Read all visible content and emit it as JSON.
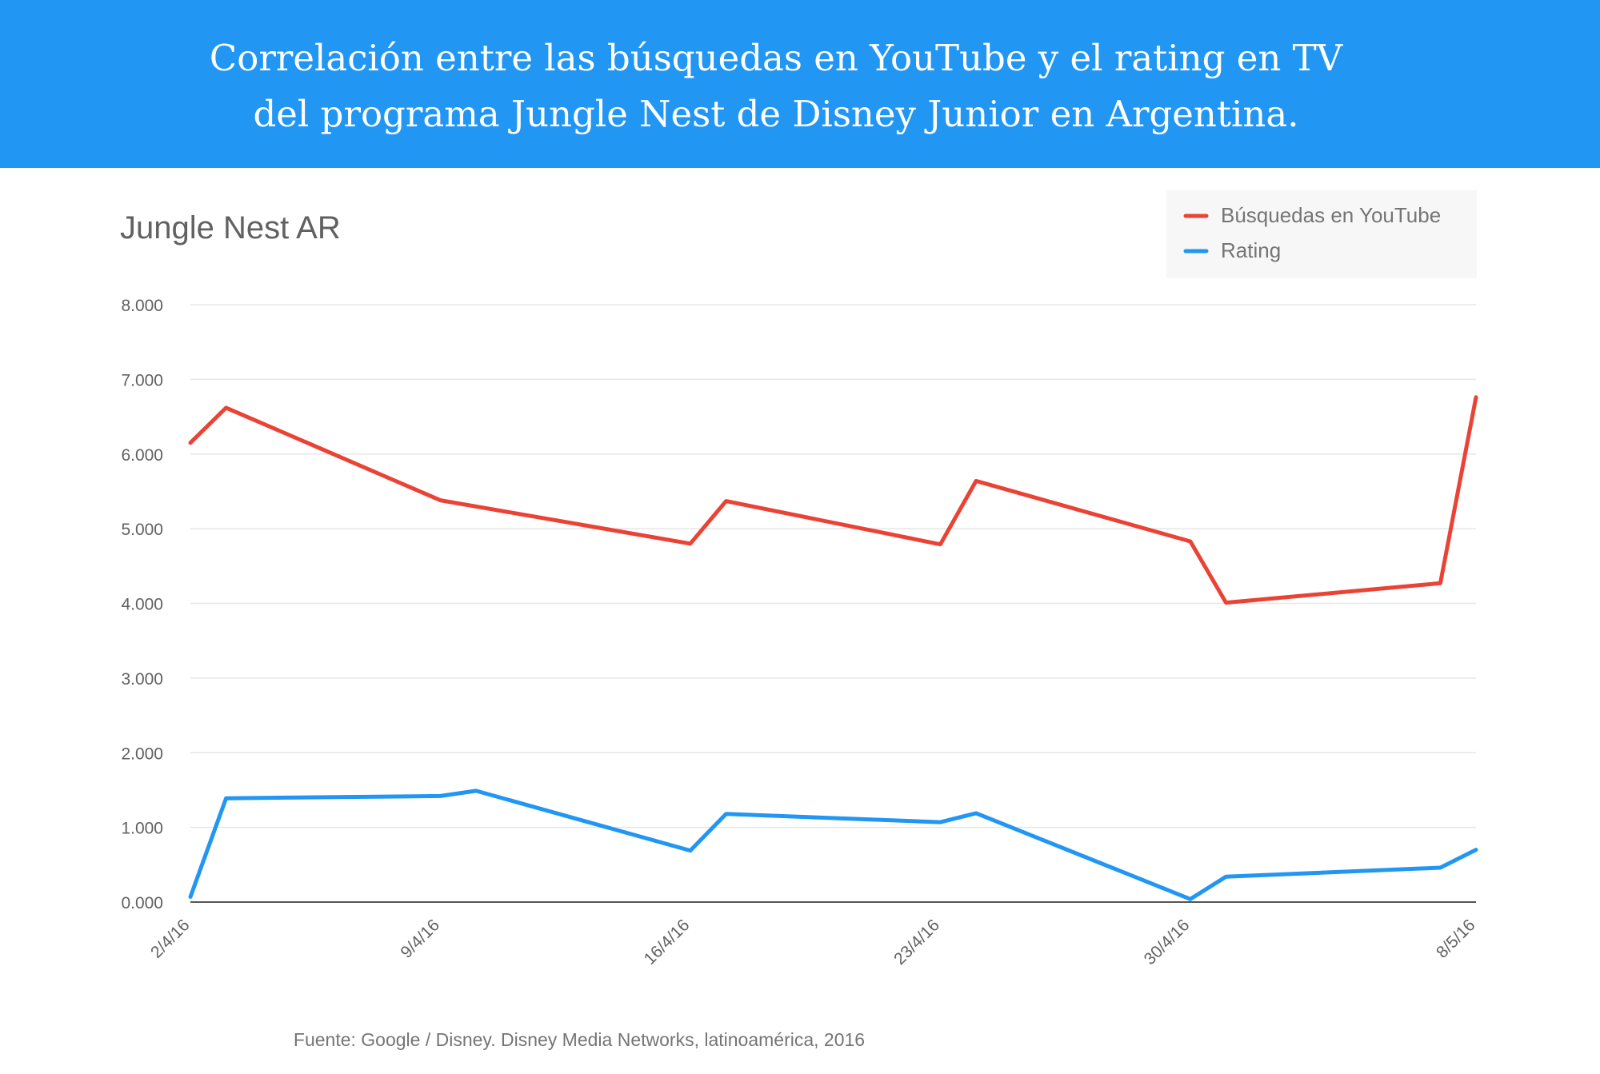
{
  "header": {
    "title_line1": "Correlación entre las búsquedas en YouTube y el rating en TV",
    "title_line2": "del programa Jungle Nest de Disney Junior en Argentina."
  },
  "colors": {
    "banner": "#2196F3",
    "series_busquedas": "#EA4335",
    "series_rating": "#2196F3",
    "grid": "#E6E6E6",
    "axis": "#555555",
    "text": "#616161",
    "legend_bg": "#F7F7F7"
  },
  "source_note": "Fuente: Google / Disney. Disney Media Networks, latinoamérica, 2016",
  "chart_data": {
    "type": "line",
    "title": "Jungle Nest AR",
    "xlabel": "",
    "ylabel": "",
    "ylim": [
      0,
      8000
    ],
    "yticks": [
      0,
      1000,
      2000,
      3000,
      4000,
      5000,
      6000,
      7000,
      8000
    ],
    "ytick_labels": [
      "0.000",
      "1.000",
      "2.000",
      "3.000",
      "4.000",
      "5.000",
      "6.000",
      "7.000",
      "8.000"
    ],
    "xlim": [
      "2016-04-02",
      "2016-05-08"
    ],
    "xticks": [
      "2016-04-02",
      "2016-04-09",
      "2016-04-16",
      "2016-04-23",
      "2016-04-30",
      "2016-05-08"
    ],
    "xtick_labels": [
      "2/4/16",
      "9/4/16",
      "16/4/16",
      "23/4/16",
      "30/4/16",
      "8/5/16"
    ],
    "grid": true,
    "legend_position": "top-right",
    "series": [
      {
        "name": "Búsquedas en YouTube",
        "color": "#EA4335",
        "x": [
          "2016-04-02",
          "2016-04-03",
          "2016-04-09",
          "2016-04-16",
          "2016-04-17",
          "2016-04-23",
          "2016-04-24",
          "2016-04-30",
          "2016-05-01",
          "2016-05-07",
          "2016-05-08"
        ],
        "y": [
          6150,
          6620,
          5380,
          4800,
          5370,
          4790,
          5640,
          4830,
          4010,
          4270,
          6760
        ]
      },
      {
        "name": "Rating",
        "color": "#2196F3",
        "x": [
          "2016-04-02",
          "2016-04-03",
          "2016-04-09",
          "2016-04-10",
          "2016-04-16",
          "2016-04-17",
          "2016-04-23",
          "2016-04-24",
          "2016-04-30",
          "2016-05-01",
          "2016-05-07",
          "2016-05-08"
        ],
        "y": [
          70,
          1390,
          1420,
          1490,
          690,
          1180,
          1070,
          1190,
          40,
          340,
          460,
          700
        ]
      }
    ]
  }
}
